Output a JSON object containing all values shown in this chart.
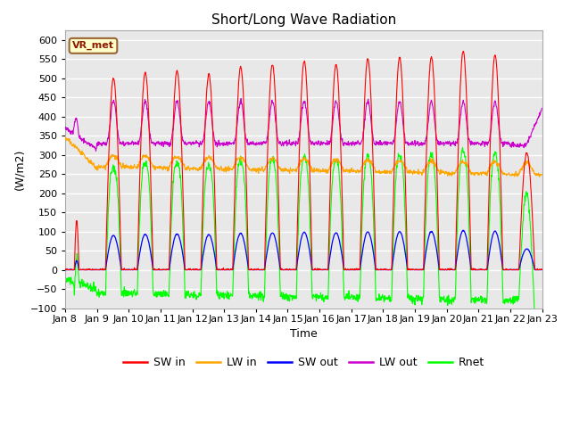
{
  "title": "Short/Long Wave Radiation",
  "xlabel": "Time",
  "ylabel": "(W/m2)",
  "ylim": [
    -100,
    625
  ],
  "yticks": [
    -100,
    -50,
    0,
    50,
    100,
    150,
    200,
    250,
    300,
    350,
    400,
    450,
    500,
    550,
    600
  ],
  "xlim_days": [
    0,
    15
  ],
  "xtick_labels": [
    "Jan 8",
    "Jan 9",
    "Jan 10",
    "Jan 11",
    "Jan 12",
    "Jan 13",
    "Jan 14",
    "Jan 15",
    "Jan 16",
    "Jan 17",
    "Jan 18",
    "Jan 19",
    "Jan 20",
    "Jan 21",
    "Jan 22",
    "Jan 23"
  ],
  "colors": {
    "SW_in": "#FF0000",
    "LW_in": "#FFA500",
    "SW_out": "#0000FF",
    "LW_out": "#CC00CC",
    "Rnet": "#00FF00"
  },
  "legend_labels": [
    "SW in",
    "LW in",
    "SW out",
    "LW out",
    "Rnet"
  ],
  "annotation_text": "VR_met",
  "annotation_fg": "#8B1A00",
  "annotation_bg": "#FFFFCC",
  "annotation_border": "#996633",
  "plot_bg_color": "#E8E8E8",
  "grid_color": "#FFFFFF",
  "num_days": 15,
  "hours_per_day": 24,
  "dt_hours": 0.25
}
